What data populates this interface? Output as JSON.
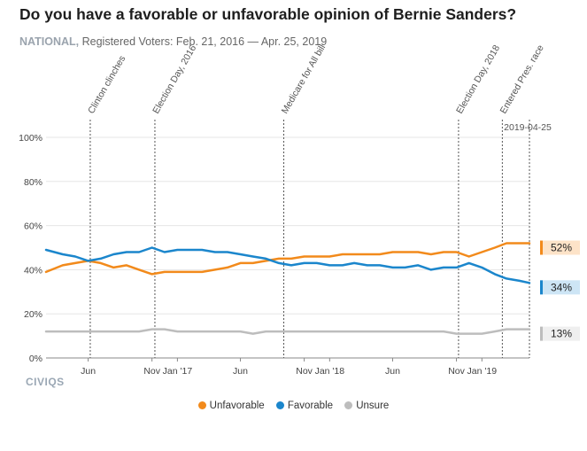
{
  "header": {
    "title": "Do you have a favorable or unfavorable opinion of Bernie Sanders?",
    "scope": "NATIONAL,",
    "subtitle": "Registered Voters: Feb. 21, 2016 — Apr. 25, 2019"
  },
  "logo": "CIVIQS",
  "chart_data": {
    "type": "line",
    "title": "Do you have a favorable or unfavorable opinion of Bernie Sanders?",
    "ylim": [
      0,
      100
    ],
    "yticks": [
      "0%",
      "20%",
      "40%",
      "60%",
      "80%",
      "100%"
    ],
    "xlim": [
      "2016-02-21",
      "2019-04-25"
    ],
    "xticks": [
      {
        "date": "2016-06-01",
        "label": "Jun"
      },
      {
        "date": "2016-11-01",
        "label": "Nov"
      },
      {
        "date": "2017-01-01",
        "label": "Jan '17"
      },
      {
        "date": "2017-06-01",
        "label": "Jun"
      },
      {
        "date": "2017-11-01",
        "label": "Nov"
      },
      {
        "date": "2018-01-01",
        "label": "Jan '18"
      },
      {
        "date": "2018-06-01",
        "label": "Jun"
      },
      {
        "date": "2018-11-01",
        "label": "Nov"
      },
      {
        "date": "2019-01-01",
        "label": "Jan '19"
      }
    ],
    "events": [
      {
        "date": "2016-06-06",
        "label": "Clinton clinches"
      },
      {
        "date": "2016-11-08",
        "label": "Election Day, 2016"
      },
      {
        "date": "2017-09-13",
        "label": "Medicare for All bill"
      },
      {
        "date": "2018-11-06",
        "label": "Election Day, 2018"
      },
      {
        "date": "2019-02-19",
        "label": "Entered Pres. race"
      },
      {
        "date": "2019-04-25",
        "label": "2019-04-25"
      }
    ],
    "x": [
      "2016-02-21",
      "2016-04-01",
      "2016-05-01",
      "2016-06-01",
      "2016-07-01",
      "2016-08-01",
      "2016-09-01",
      "2016-10-01",
      "2016-11-01",
      "2016-12-01",
      "2017-01-01",
      "2017-02-01",
      "2017-03-01",
      "2017-04-01",
      "2017-05-01",
      "2017-06-01",
      "2017-07-01",
      "2017-08-01",
      "2017-09-01",
      "2017-10-01",
      "2017-11-01",
      "2017-12-01",
      "2018-01-01",
      "2018-02-01",
      "2018-03-01",
      "2018-04-01",
      "2018-05-01",
      "2018-06-01",
      "2018-07-01",
      "2018-08-01",
      "2018-09-01",
      "2018-10-01",
      "2018-11-01",
      "2018-12-01",
      "2019-01-01",
      "2019-02-01",
      "2019-03-01",
      "2019-04-01",
      "2019-04-25"
    ],
    "series": [
      {
        "name": "Unfavorable",
        "color": "#f28a1b",
        "end_label": "52%",
        "values": [
          39,
          42,
          43,
          44,
          43,
          41,
          42,
          40,
          38,
          39,
          39,
          39,
          39,
          40,
          41,
          43,
          43,
          44,
          45,
          45,
          46,
          46,
          46,
          47,
          47,
          47,
          47,
          48,
          48,
          48,
          47,
          48,
          48,
          46,
          48,
          50,
          52,
          52,
          52
        ]
      },
      {
        "name": "Favorable",
        "color": "#1b86cc",
        "end_label": "34%",
        "values": [
          49,
          47,
          46,
          44,
          45,
          47,
          48,
          48,
          50,
          48,
          49,
          49,
          49,
          48,
          48,
          47,
          46,
          45,
          43,
          42,
          43,
          43,
          42,
          42,
          43,
          42,
          42,
          41,
          41,
          42,
          40,
          41,
          41,
          43,
          41,
          38,
          36,
          35,
          34
        ]
      },
      {
        "name": "Unsure",
        "color": "#bdbdbd",
        "end_label": "13%",
        "values": [
          12,
          12,
          12,
          12,
          12,
          12,
          12,
          12,
          13,
          13,
          12,
          12,
          12,
          12,
          12,
          12,
          11,
          12,
          12,
          12,
          12,
          12,
          12,
          12,
          12,
          12,
          12,
          12,
          12,
          12,
          12,
          12,
          11,
          11,
          11,
          12,
          13,
          13,
          13
        ]
      }
    ]
  }
}
